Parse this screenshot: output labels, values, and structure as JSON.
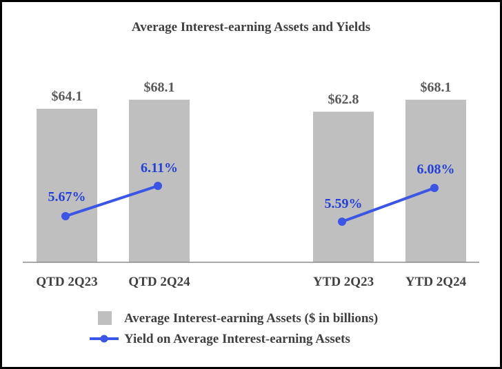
{
  "chart_data": {
    "type": "bar",
    "title": "Average Interest-earning Assets and Yields",
    "categories": [
      "QTD 2Q23",
      "QTD 2Q24",
      "YTD 2Q23",
      "YTD 2Q24"
    ],
    "groups": [
      [
        "QTD 2Q23",
        "QTD 2Q24"
      ],
      [
        "YTD 2Q23",
        "YTD 2Q24"
      ]
    ],
    "series": [
      {
        "name": "Average Interest-earning Assets ($ in billions)",
        "type": "bar",
        "values": [
          64.1,
          68.1,
          62.8,
          68.1
        ],
        "labels": [
          "$64.1",
          "$68.1",
          "$62.8",
          "$68.1"
        ],
        "color": "#bfbfbf"
      },
      {
        "name": "Yield on Average Interest-earning Assets",
        "type": "line",
        "values": [
          5.67,
          6.11,
          5.59,
          6.08
        ],
        "labels": [
          "5.67%",
          "6.11%",
          "5.59%",
          "6.08%"
        ],
        "color": "#3b55e6"
      }
    ],
    "legend_position": "bottom",
    "grid": false
  }
}
